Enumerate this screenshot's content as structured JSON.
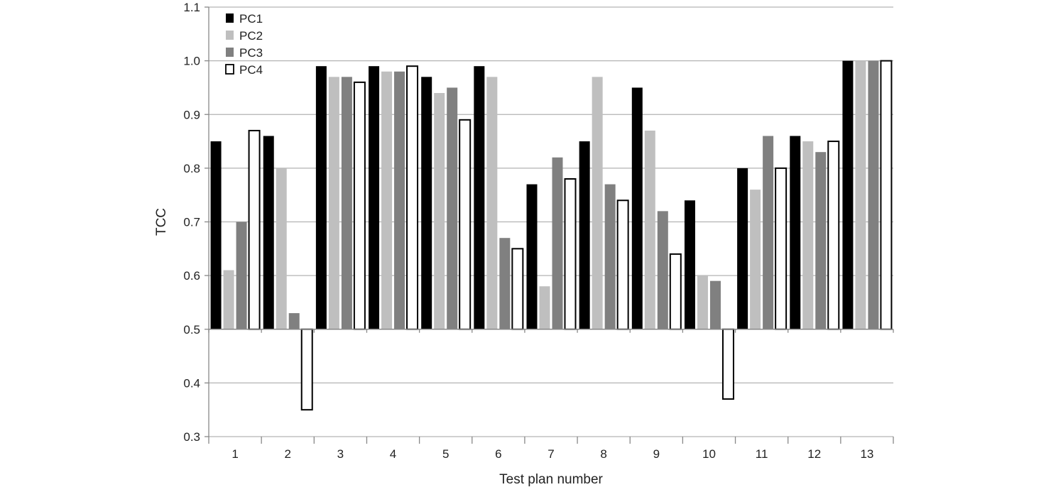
{
  "chart_data": {
    "type": "bar",
    "title": "",
    "xlabel": "Test plan number",
    "ylabel": "TCC",
    "ylim": [
      0.3,
      1.1
    ],
    "baseline": 0.5,
    "yticks": [
      "0.3",
      "0.4",
      "0.5",
      "0.6",
      "0.7",
      "0.8",
      "0.9",
      "1.0",
      "1.1"
    ],
    "categories": [
      "1",
      "2",
      "3",
      "4",
      "5",
      "6",
      "7",
      "8",
      "9",
      "10",
      "11",
      "12",
      "13"
    ],
    "grid": true,
    "legend_position": "top-left",
    "series": [
      {
        "name": "PC1",
        "color": "#000000",
        "values": [
          0.85,
          0.86,
          0.99,
          0.99,
          0.97,
          0.99,
          0.77,
          0.85,
          0.95,
          0.74,
          0.8,
          0.86,
          1.0
        ]
      },
      {
        "name": "PC2",
        "color": "#bfbfbf",
        "values": [
          0.61,
          0.8,
          0.97,
          0.98,
          0.94,
          0.97,
          0.58,
          0.97,
          0.87,
          0.6,
          0.76,
          0.85,
          1.0
        ]
      },
      {
        "name": "PC3",
        "color": "#808080",
        "values": [
          0.7,
          0.53,
          0.97,
          0.98,
          0.95,
          0.67,
          0.82,
          0.77,
          0.72,
          0.59,
          0.86,
          0.83,
          1.0
        ]
      },
      {
        "name": "PC4",
        "color": "#ffffff",
        "values": [
          0.87,
          0.35,
          0.96,
          0.99,
          0.89,
          0.65,
          0.78,
          0.74,
          0.64,
          0.37,
          0.8,
          0.85,
          1.0
        ]
      }
    ]
  }
}
